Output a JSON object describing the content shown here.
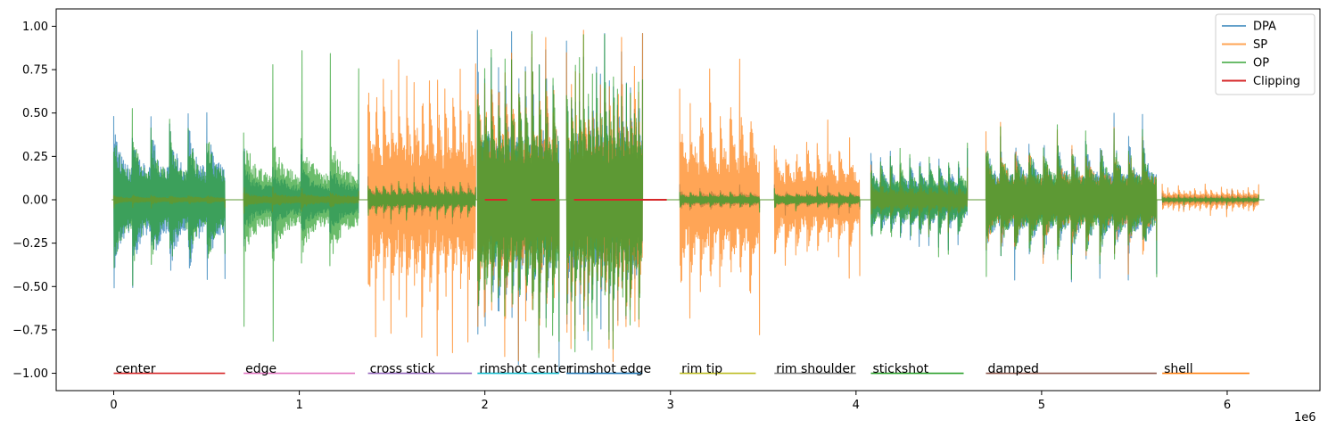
{
  "chart_data": {
    "type": "line",
    "title": "",
    "xlabel": "",
    "ylabel": "",
    "x_offset_label": "1e6",
    "xlim": [
      -0.31,
      6.5
    ],
    "ylim": [
      -1.1,
      1.1
    ],
    "x_ticks": [
      0,
      1,
      2,
      3,
      4,
      5,
      6
    ],
    "x_tick_labels": [
      "0",
      "1",
      "2",
      "3",
      "4",
      "5",
      "6"
    ],
    "y_ticks": [
      -1.0,
      -0.75,
      -0.5,
      -0.25,
      0.0,
      0.25,
      0.5,
      0.75,
      1.0
    ],
    "y_tick_labels": [
      "−1.00",
      "−0.75",
      "−0.50",
      "−0.25",
      "0.00",
      "0.25",
      "0.50",
      "0.75",
      "1.00"
    ],
    "legend_position": "top-right",
    "series": [
      {
        "name": "DPA",
        "color": "#1f77b4",
        "envelope": [
          {
            "start": 0.0,
            "end": 0.6,
            "amp": 0.5,
            "peak": 0.56,
            "hits": 6
          },
          {
            "start": 0.7,
            "end": 1.32,
            "amp": 0.22,
            "peak": 0.3,
            "hits": 4
          },
          {
            "start": 1.37,
            "end": 1.95,
            "amp": 0.12,
            "peak": 0.15,
            "hits": 14
          },
          {
            "start": 1.96,
            "end": 2.4,
            "amp": 0.95,
            "peak": 1.0,
            "hits": 12
          },
          {
            "start": 2.44,
            "end": 2.85,
            "amp": 0.98,
            "peak": 1.0,
            "hits": 18
          },
          {
            "start": 3.05,
            "end": 3.48,
            "amp": 0.07,
            "peak": 0.1,
            "hits": 8
          },
          {
            "start": 3.56,
            "end": 4.02,
            "amp": 0.06,
            "peak": 0.09,
            "hits": 8
          },
          {
            "start": 4.08,
            "end": 4.6,
            "amp": 0.28,
            "peak": 0.33,
            "hits": 10
          },
          {
            "start": 4.7,
            "end": 5.62,
            "amp": 0.4,
            "peak": 0.5,
            "hits": 12
          },
          {
            "start": 5.65,
            "end": 6.17,
            "amp": 0.04,
            "peak": 0.06,
            "hits": 18
          }
        ]
      },
      {
        "name": "SP",
        "color": "#ff7f0e",
        "envelope": [
          {
            "start": 0.0,
            "end": 0.6,
            "amp": 0.03,
            "peak": 0.05,
            "hits": 6
          },
          {
            "start": 0.7,
            "end": 1.32,
            "amp": 0.05,
            "peak": 0.08,
            "hits": 4
          },
          {
            "start": 1.37,
            "end": 1.95,
            "amp": 0.8,
            "peak": 0.9,
            "hits": 14
          },
          {
            "start": 1.96,
            "end": 2.4,
            "amp": 0.95,
            "peak": 1.0,
            "hits": 12
          },
          {
            "start": 2.44,
            "end": 2.85,
            "amp": 0.98,
            "peak": 1.0,
            "hits": 18
          },
          {
            "start": 3.05,
            "end": 3.48,
            "amp": 0.68,
            "peak": 0.85,
            "hits": 8
          },
          {
            "start": 3.56,
            "end": 4.02,
            "amp": 0.4,
            "peak": 0.5,
            "hits": 8
          },
          {
            "start": 4.08,
            "end": 4.6,
            "amp": 0.12,
            "peak": 0.2,
            "hits": 10
          },
          {
            "start": 4.7,
            "end": 5.62,
            "amp": 0.35,
            "peak": 0.45,
            "hits": 12
          },
          {
            "start": 5.65,
            "end": 6.17,
            "amp": 0.08,
            "peak": 0.1,
            "hits": 18
          }
        ]
      },
      {
        "name": "OP",
        "color": "#2ca02c",
        "envelope": [
          {
            "start": 0.0,
            "end": 0.6,
            "amp": 0.45,
            "peak": 0.53,
            "hits": 6
          },
          {
            "start": 0.7,
            "end": 1.32,
            "amp": 0.4,
            "peak": 0.87,
            "hits": 4
          },
          {
            "start": 1.37,
            "end": 1.95,
            "amp": 0.1,
            "peak": 0.12,
            "hits": 14
          },
          {
            "start": 1.96,
            "end": 2.4,
            "amp": 0.95,
            "peak": 1.0,
            "hits": 12
          },
          {
            "start": 2.44,
            "end": 2.85,
            "amp": 0.98,
            "peak": 1.0,
            "hits": 18
          },
          {
            "start": 3.05,
            "end": 3.48,
            "amp": 0.05,
            "peak": 0.08,
            "hits": 8
          },
          {
            "start": 3.56,
            "end": 4.02,
            "amp": 0.05,
            "peak": 0.08,
            "hits": 8
          },
          {
            "start": 4.08,
            "end": 4.6,
            "amp": 0.28,
            "peak": 0.35,
            "hits": 10
          },
          {
            "start": 4.7,
            "end": 5.62,
            "amp": 0.38,
            "peak": 0.48,
            "hits": 12
          },
          {
            "start": 5.65,
            "end": 6.17,
            "amp": 0.02,
            "peak": 0.03,
            "hits": 18
          }
        ]
      },
      {
        "name": "Clipping",
        "color": "#d62728",
        "segments": [
          [
            2.0,
            2.12
          ],
          [
            2.25,
            2.38
          ],
          [
            2.48,
            2.62
          ],
          [
            2.62,
            2.98
          ]
        ],
        "y": 0.0
      }
    ],
    "segments": [
      {
        "label": "center",
        "start": 0.0,
        "end": 0.6,
        "color": "#d62728"
      },
      {
        "label": "edge",
        "start": 0.7,
        "end": 1.3,
        "color": "#e377c2"
      },
      {
        "label": "cross stick",
        "start": 1.37,
        "end": 1.93,
        "color": "#9467bd"
      },
      {
        "label": "rimshot center",
        "start": 1.96,
        "end": 2.4,
        "color": "#17becf"
      },
      {
        "label": "rimshot edge",
        "start": 2.44,
        "end": 2.85,
        "color": "#1f77b4"
      },
      {
        "label": "rim tip",
        "start": 3.05,
        "end": 3.46,
        "color": "#bcbd22"
      },
      {
        "label": "rim shoulder",
        "start": 3.56,
        "end": 4.0,
        "color": "#7f7f7f"
      },
      {
        "label": "stickshot",
        "start": 4.08,
        "end": 4.58,
        "color": "#2ca02c"
      },
      {
        "label": "damped",
        "start": 4.7,
        "end": 5.62,
        "color": "#8c564b"
      },
      {
        "label": "shell",
        "start": 5.65,
        "end": 6.12,
        "color": "#ff7f0e"
      }
    ]
  }
}
